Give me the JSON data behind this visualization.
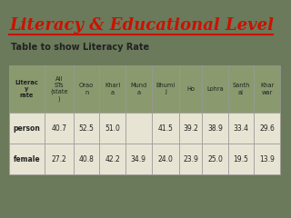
{
  "title": "Literacy & Educational Level",
  "subtitle": "Table to show Literacy Rate",
  "bg_color": "#6b7a5a",
  "title_color": "#cc1100",
  "subtitle_color": "#222222",
  "col_headers": [
    "Literac\ny\nrate",
    "All\nSTs\n(state\n)",
    "Orao\nn",
    "Khari\na",
    "Mund\na",
    "Bhumi\nj",
    "Ho",
    "Lohra",
    "Santh\nal",
    "Khar\nwar"
  ],
  "header_bg": "#8a9a6e",
  "row_bg": "#e8e4d4",
  "rows": [
    {
      "label": "person",
      "values": [
        "40.7",
        "52.5",
        "51.0",
        "",
        "41.5",
        "39.2",
        "38.9",
        "33.4",
        "29.6"
      ]
    },
    {
      "label": "female",
      "values": [
        "27.2",
        "40.8",
        "42.2",
        "34.9",
        "24.0",
        "23.9",
        "25.0",
        "19.5",
        "13.9"
      ]
    }
  ],
  "table_text_color": "#222222",
  "col_widths_rel": [
    1.15,
    0.95,
    0.85,
    0.85,
    0.85,
    0.9,
    0.75,
    0.85,
    0.85,
    0.85
  ]
}
